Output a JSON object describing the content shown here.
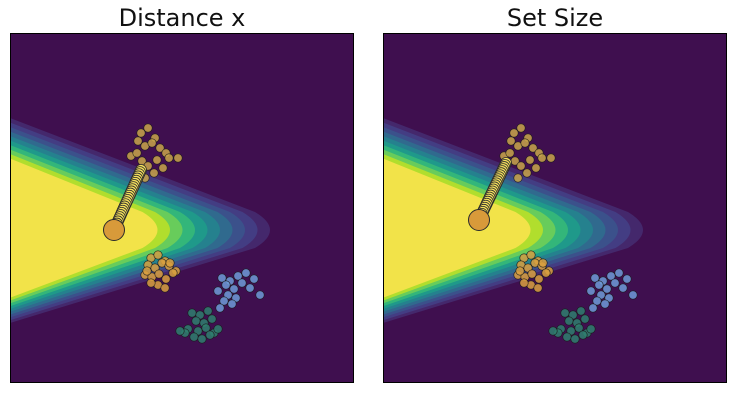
{
  "chart_data": [
    {
      "type": "scatter",
      "title": "Distance x",
      "xlabel": "",
      "ylabel": "",
      "grid": false,
      "background_colormap": "viridis",
      "colors": {
        "background": "#3f0f4f",
        "contour_levels": [
          "#3f0f4f",
          "#452a6e",
          "#433e85",
          "#3b528b",
          "#2f6b8e",
          "#25838e",
          "#1f9a8a",
          "#35b779",
          "#6ccd5a",
          "#b5de2b",
          "#f6e34b"
        ],
        "cluster_gold": "#c9a64a",
        "cluster_orange": "#d9a040",
        "cluster_blue": "#6e9bd8",
        "cluster_green": "#2f7f6e",
        "cluster_dark": "#2a5a55",
        "path_yellow": "#f7e25e",
        "path_start": "#d89a3a"
      },
      "clusters": [
        {
          "id": "gold-top",
          "x": [
            131,
            138,
            145,
            128,
            135,
            142,
            150,
            156,
            121,
            132,
            147,
            159,
            138,
            127,
            153,
            144,
            135,
            168
          ],
          "y": [
            100,
            95,
            105,
            108,
            113,
            110,
            115,
            120,
            123,
            128,
            127,
            125,
            133,
            120,
            135,
            140,
            145,
            125
          ]
        },
        {
          "id": "orange-mid",
          "x": [
            141,
            148,
            155,
            138,
            145,
            152,
            159,
            166,
            135,
            142,
            149,
            156,
            163,
            148,
            141,
            155,
            160,
            137
          ],
          "y": [
            225,
            222,
            228,
            232,
            235,
            230,
            233,
            238,
            242,
            244,
            241,
            246,
            240,
            252,
            250,
            255,
            230,
            238
          ]
        },
        {
          "id": "blue-right",
          "x": [
            212,
            220,
            228,
            236,
            244,
            216,
            224,
            232,
            240,
            208,
            218,
            226,
            214,
            222,
            210,
            250
          ],
          "y": [
            245,
            248,
            243,
            240,
            246,
            252,
            256,
            250,
            255,
            258,
            262,
            265,
            268,
            271,
            275,
            262
          ]
        },
        {
          "id": "green-low",
          "x": [
            182,
            190,
            198,
            186,
            194,
            202,
            178,
            188,
            196,
            204,
            184,
            192,
            200,
            175,
            170,
            208
          ],
          "y": [
            280,
            282,
            278,
            288,
            290,
            286,
            296,
            298,
            295,
            300,
            304,
            306,
            302,
            300,
            298,
            296
          ]
        }
      ],
      "path": {
        "start": [
          104,
          197
        ],
        "end": [
          131,
          137
        ],
        "steps": 28
      }
    },
    {
      "type": "scatter",
      "title": "Set Size",
      "xlabel": "",
      "ylabel": "",
      "grid": false,
      "background_colormap": "viridis",
      "colors": {
        "background": "#3f0f4f",
        "contour_levels": [
          "#3f0f4f",
          "#452a6e",
          "#433e85",
          "#3b528b",
          "#2f6b8e",
          "#25838e",
          "#1f9a8a",
          "#35b779",
          "#6ccd5a",
          "#b5de2b",
          "#f6e34b"
        ],
        "cluster_gold": "#c9a64a",
        "cluster_orange": "#d9a040",
        "cluster_blue": "#6e9bd8",
        "cluster_green": "#2f7f6e",
        "cluster_dark": "#2a5a55",
        "path_yellow": "#f7e25e",
        "path_start": "#d89a3a"
      },
      "clusters": [
        {
          "id": "gold-top",
          "x": [
            131,
            138,
            145,
            128,
            135,
            142,
            150,
            156,
            121,
            132,
            147,
            159,
            138,
            127,
            153,
            144,
            135,
            168
          ],
          "y": [
            100,
            95,
            105,
            108,
            113,
            110,
            115,
            120,
            123,
            128,
            127,
            125,
            133,
            120,
            135,
            140,
            145,
            125
          ]
        },
        {
          "id": "orange-mid",
          "x": [
            141,
            148,
            155,
            138,
            145,
            152,
            159,
            166,
            135,
            142,
            149,
            156,
            163,
            148,
            141,
            155,
            160,
            137
          ],
          "y": [
            225,
            222,
            228,
            232,
            235,
            230,
            233,
            238,
            242,
            244,
            241,
            246,
            240,
            252,
            250,
            255,
            230,
            238
          ]
        },
        {
          "id": "blue-right",
          "x": [
            212,
            220,
            228,
            236,
            244,
            216,
            224,
            232,
            240,
            208,
            218,
            226,
            214,
            222,
            210,
            250
          ],
          "y": [
            245,
            248,
            243,
            240,
            246,
            252,
            256,
            250,
            255,
            258,
            262,
            265,
            268,
            271,
            275,
            262
          ]
        },
        {
          "id": "green-low",
          "x": [
            182,
            190,
            198,
            186,
            194,
            202,
            178,
            188,
            196,
            204,
            184,
            192,
            200,
            175,
            170,
            208
          ],
          "y": [
            280,
            282,
            278,
            288,
            290,
            286,
            296,
            298,
            295,
            300,
            304,
            306,
            302,
            300,
            298,
            296
          ]
        }
      ],
      "path": {
        "start": [
          96,
          187
        ],
        "end": [
          123,
          130
        ],
        "steps": 28
      }
    }
  ]
}
